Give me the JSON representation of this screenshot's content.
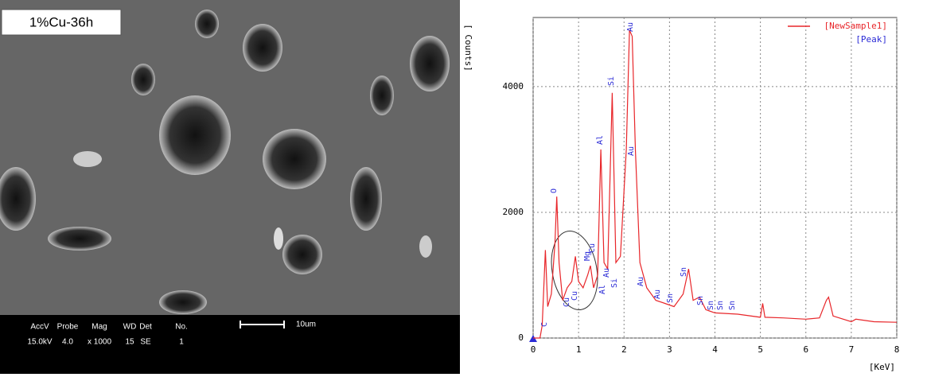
{
  "image_panel": {
    "label": "1%Cu-36h",
    "info_headers": [
      "AccV",
      "Probe",
      "Mag",
      "WD",
      "Det",
      "No."
    ],
    "info_values": [
      "15.0kV",
      "4.0",
      "x 1000",
      "15",
      "SE",
      "1"
    ],
    "scale_bar": "10um"
  },
  "chart_data": {
    "type": "line",
    "ylabel": "[ Counts]",
    "xlabel": "[KeV]",
    "x": [
      0,
      0.15,
      0.2,
      0.27,
      0.32,
      0.4,
      0.48,
      0.52,
      0.57,
      0.65,
      0.75,
      0.85,
      0.93,
      1.0,
      1.1,
      1.2,
      1.26,
      1.33,
      1.42,
      1.49,
      1.56,
      1.64,
      1.74,
      1.82,
      1.92,
      2.05,
      2.12,
      2.18,
      2.25,
      2.35,
      2.5,
      2.7,
      2.9,
      3.1,
      3.3,
      3.42,
      3.52,
      3.66,
      3.8,
      4.0,
      4.5,
      5.0,
      5.05,
      5.1,
      5.5,
      6.0,
      6.3,
      6.45,
      6.5,
      6.6,
      7.0,
      7.1,
      7.5,
      8.0
    ],
    "series": [
      {
        "name": "[NewSample1]",
        "color": "#e8262a",
        "values": [
          0,
          0,
          200,
          1400,
          500,
          700,
          1500,
          2250,
          1200,
          600,
          800,
          900,
          1300,
          900,
          800,
          1000,
          1150,
          800,
          1000,
          3000,
          1200,
          1100,
          3900,
          1200,
          1300,
          3000,
          4900,
          4800,
          3000,
          1200,
          800,
          600,
          550,
          500,
          700,
          1100,
          600,
          650,
          450,
          400,
          380,
          330,
          550,
          330,
          320,
          300,
          320,
          600,
          650,
          350,
          260,
          300,
          260,
          250
        ]
      }
    ],
    "peak_legend": "[Peak]",
    "peak_color": "#2b2bd6",
    "peak_labels": [
      "C",
      "O",
      "Cu",
      "Cu",
      "Cu",
      "Mg",
      "Al",
      "Au",
      "Si",
      "Al",
      "Si",
      "Au",
      "Au",
      "Au",
      "Au",
      "Sn",
      "Sn",
      "Sn",
      "Sn",
      "Sn",
      "Sn"
    ],
    "xlim": [
      0,
      8
    ],
    "xticks": [
      0,
      1,
      2,
      3,
      4,
      5,
      6,
      7,
      8
    ],
    "ylim": [
      0,
      5100
    ],
    "yticks": [
      0,
      2000,
      4000
    ],
    "grid": true
  }
}
